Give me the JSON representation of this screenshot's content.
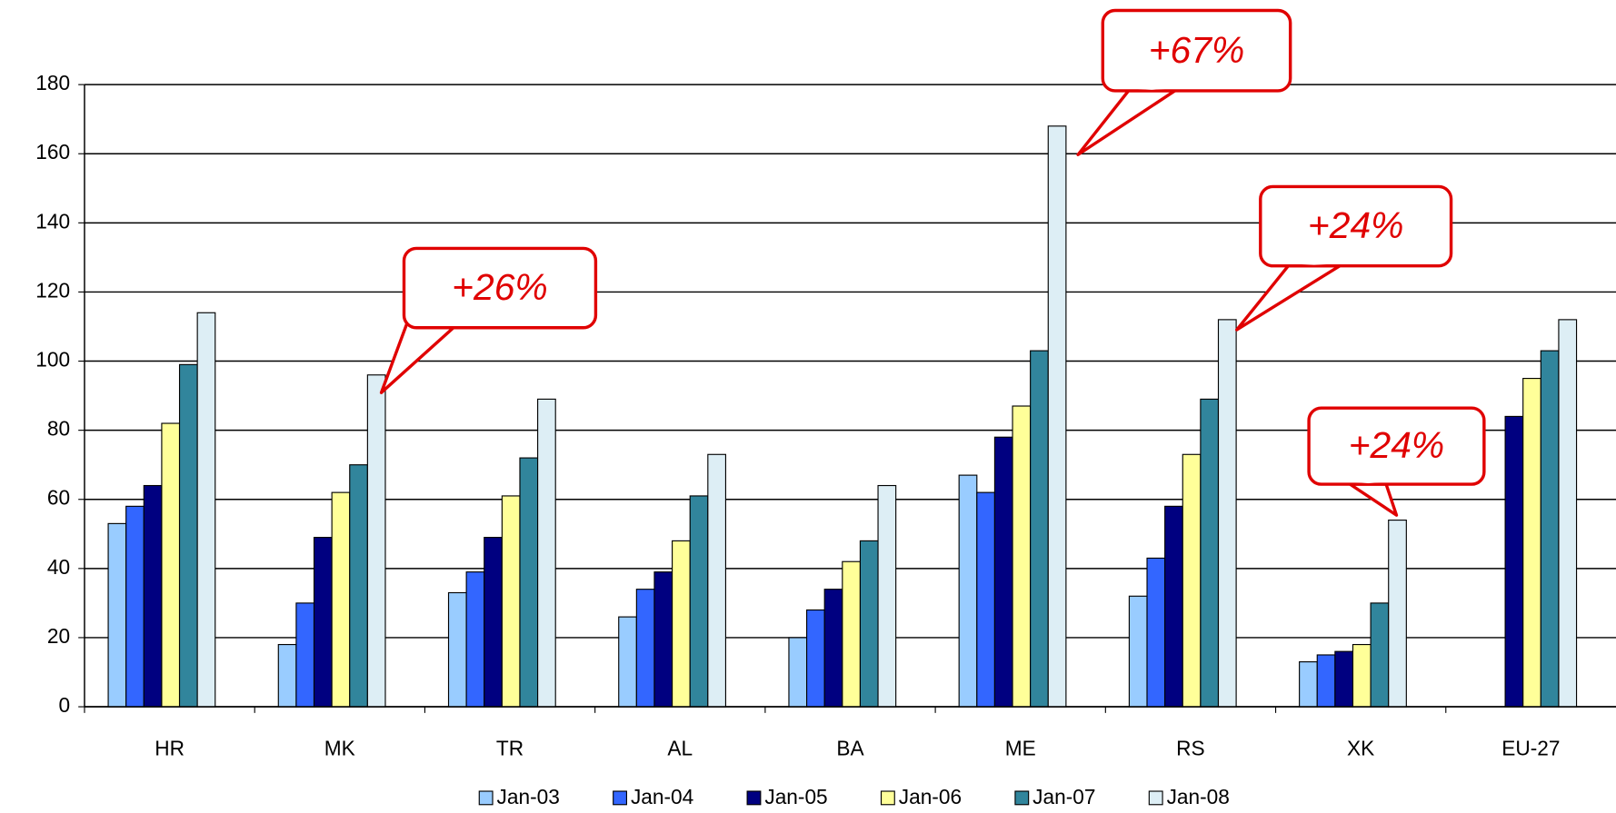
{
  "chart_data": {
    "type": "bar",
    "categories": [
      "HR",
      "MK",
      "TR",
      "AL",
      "BA",
      "ME",
      "RS",
      "XK",
      "EU-27"
    ],
    "series": [
      {
        "name": "Jan-03",
        "color": "#99ccff",
        "values": [
          53,
          18,
          33,
          26,
          20,
          67,
          32,
          13,
          null
        ]
      },
      {
        "name": "Jan-04",
        "color": "#3366ff",
        "values": [
          58,
          30,
          39,
          34,
          28,
          62,
          43,
          15,
          null
        ]
      },
      {
        "name": "Jan-05",
        "color": "#000080",
        "values": [
          64,
          49,
          49,
          39,
          34,
          78,
          58,
          16,
          84
        ]
      },
      {
        "name": "Jan-06",
        "color": "#ffff99",
        "values": [
          82,
          62,
          61,
          48,
          42,
          87,
          73,
          18,
          95
        ]
      },
      {
        "name": "Jan-07",
        "color": "#31859c",
        "values": [
          99,
          70,
          72,
          61,
          48,
          103,
          89,
          30,
          103
        ]
      },
      {
        "name": "Jan-08",
        "color": "#ddeef5",
        "values": [
          114,
          96,
          89,
          73,
          64,
          168,
          112,
          54,
          112
        ]
      }
    ],
    "annotations": [
      "+26%",
      "+67%",
      "+24%",
      "+24%"
    ],
    "ylim": [
      0,
      180
    ],
    "yticks": [
      0,
      20,
      40,
      60,
      80,
      100,
      120,
      140,
      160,
      180
    ],
    "grid": true,
    "legend": "bottom"
  }
}
